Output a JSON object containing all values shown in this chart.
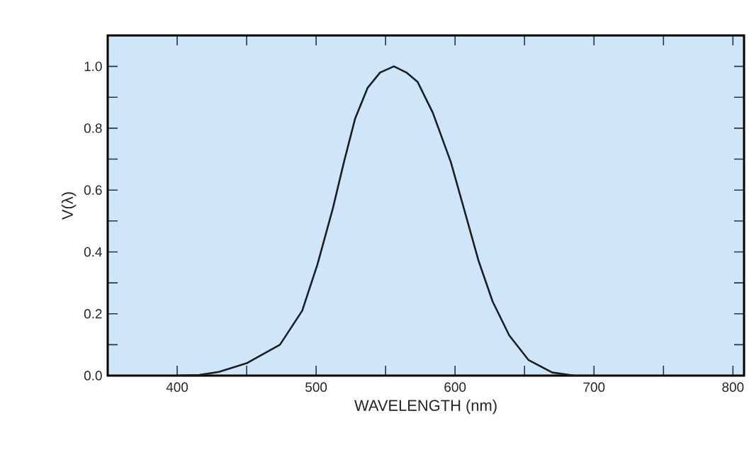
{
  "chart_data": {
    "type": "line",
    "xlabel": "WAVELENGTH (nm)",
    "ylabel": "V(λ)",
    "xlim": [
      350,
      808
    ],
    "ylim": [
      0,
      1.1
    ],
    "xticks": [
      {
        "value": 400,
        "label": "400"
      },
      {
        "value": 450,
        "label": null
      },
      {
        "value": 500,
        "label": "500"
      },
      {
        "value": 550,
        "label": null
      },
      {
        "value": 600,
        "label": "600"
      },
      {
        "value": 650,
        "label": null
      },
      {
        "value": 700,
        "label": "700"
      },
      {
        "value": 750,
        "label": null
      },
      {
        "value": 800,
        "label": "800"
      }
    ],
    "yticks": [
      {
        "value": 0,
        "label": "0.0"
      },
      {
        "value": 0.1,
        "label": null
      },
      {
        "value": 0.2,
        "label": "0.2"
      },
      {
        "value": 0.3,
        "label": null
      },
      {
        "value": 0.4,
        "label": "0.4"
      },
      {
        "value": 0.5,
        "label": null
      },
      {
        "value": 0.6,
        "label": "0.6"
      },
      {
        "value": 0.7,
        "label": null
      },
      {
        "value": 0.8,
        "label": "0.8"
      },
      {
        "value": 0.9,
        "label": null
      },
      {
        "value": 1.0,
        "label": "1.0"
      }
    ],
    "x": [
      400,
      416,
      430,
      450,
      474,
      490,
      501,
      512,
      520,
      528,
      537,
      546,
      556,
      565,
      573,
      584,
      597,
      607,
      617,
      627,
      639,
      653,
      670,
      686,
      700
    ],
    "series": [
      {
        "color": "#1a1f24",
        "values": [
          0,
          0.002,
          0.012,
          0.04,
          0.1,
          0.21,
          0.36,
          0.54,
          0.69,
          0.83,
          0.93,
          0.98,
          1.0,
          0.98,
          0.95,
          0.85,
          0.69,
          0.53,
          0.37,
          0.24,
          0.13,
          0.05,
          0.01,
          0,
          0
        ]
      }
    ],
    "grid": false,
    "marker": "none",
    "line_style": "solid"
  }
}
